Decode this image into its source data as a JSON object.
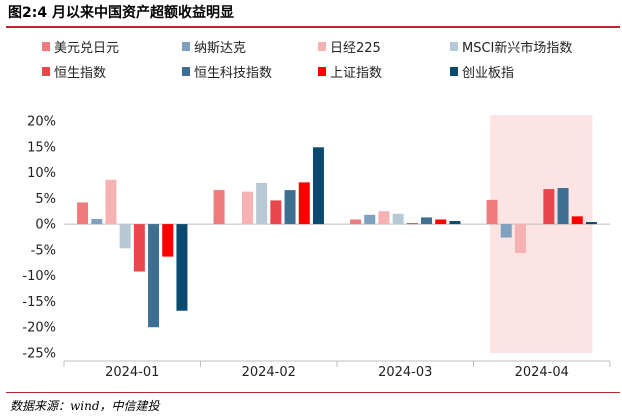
{
  "figure": {
    "title": "图2:4 月以来中国资产超额收益明显",
    "source": "数据来源：wind，中信建投"
  },
  "chart_data": {
    "type": "bar",
    "title": "",
    "xlabel": "",
    "ylabel": "",
    "categories": [
      "2024-01",
      "2024-02",
      "2024-03",
      "2024-04"
    ],
    "ylim": [
      -25,
      20
    ],
    "yticks": [
      "20%",
      "15%",
      "10%",
      "5%",
      "0%",
      "-5%",
      "-10%",
      "-15%",
      "-20%",
      "-25%"
    ],
    "grid": false,
    "legend_position": "top",
    "highlight_category": "2024-04",
    "highlight_color": "#fde4e4",
    "series": [
      {
        "name": "美元兑日元",
        "color": "#ef7b7e",
        "values": [
          4.2,
          6.6,
          0.9,
          4.7
        ]
      },
      {
        "name": "纳斯达克",
        "color": "#7fa1c0",
        "values": [
          1.0,
          0.0,
          1.8,
          -2.6
        ]
      },
      {
        "name": "日经225",
        "color": "#f6b2b2",
        "values": [
          8.6,
          6.3,
          2.5,
          -5.6
        ]
      },
      {
        "name": "MSCI新兴市场指数",
        "color": "#b8c9d6",
        "values": [
          -4.7,
          8.0,
          2.0,
          0.0
        ]
      },
      {
        "name": "恒生指数",
        "color": "#e8474b",
        "values": [
          -9.2,
          4.6,
          0.2,
          6.8
        ]
      },
      {
        "name": "恒生科技指数",
        "color": "#3e6f93",
        "values": [
          -20.0,
          6.6,
          1.3,
          7.0
        ]
      },
      {
        "name": "上证指数",
        "color": "#ff0000",
        "values": [
          -6.3,
          8.1,
          0.9,
          1.5
        ]
      },
      {
        "name": "创业板指",
        "color": "#0a4a6e",
        "values": [
          -16.8,
          14.9,
          0.6,
          0.4
        ]
      }
    ]
  }
}
